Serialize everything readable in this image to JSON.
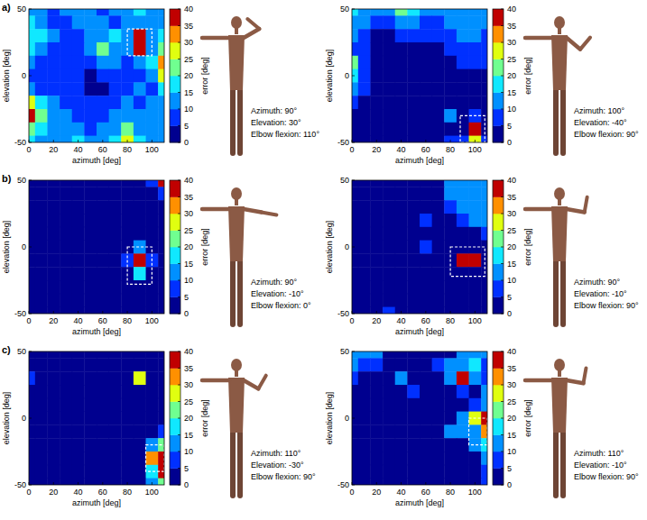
{
  "chart_data": [
    {
      "type": "heatmap",
      "panel": "a)",
      "xlabel": "azimuth [deg]",
      "ylabel": "elevation [deg]",
      "x": [
        0,
        10,
        20,
        30,
        40,
        50,
        60,
        70,
        80,
        90,
        100,
        110
      ],
      "y": [
        50,
        40,
        30,
        20,
        10,
        0,
        -10,
        -20,
        -30,
        -40,
        -50
      ],
      "xlim": [
        0,
        110
      ],
      "ylim": [
        -50,
        50
      ],
      "xticks": [
        0,
        20,
        40,
        60,
        80,
        100
      ],
      "yticks": [
        -50,
        0,
        50
      ],
      "values": [
        [
          12,
          10,
          8,
          10,
          12,
          10,
          8,
          10,
          12,
          15,
          12,
          10
        ],
        [
          15,
          12,
          8,
          8,
          10,
          12,
          10,
          8,
          10,
          12,
          10,
          12
        ],
        [
          18,
          15,
          10,
          8,
          8,
          10,
          12,
          15,
          12,
          40,
          12,
          15
        ],
        [
          15,
          12,
          8,
          5,
          8,
          10,
          22,
          12,
          10,
          35,
          10,
          20
        ],
        [
          10,
          8,
          5,
          5,
          8,
          5,
          10,
          10,
          8,
          12,
          15,
          30
        ],
        [
          8,
          5,
          5,
          8,
          5,
          3,
          5,
          8,
          5,
          8,
          10,
          25
        ],
        [
          12,
          8,
          5,
          8,
          5,
          3,
          3,
          5,
          8,
          10,
          8,
          15
        ],
        [
          25,
          15,
          10,
          8,
          5,
          5,
          5,
          8,
          10,
          8,
          10,
          12
        ],
        [
          40,
          20,
          12,
          10,
          8,
          5,
          8,
          10,
          12,
          10,
          12,
          10
        ],
        [
          20,
          15,
          10,
          12,
          10,
          8,
          10,
          12,
          20,
          12,
          10,
          12
        ],
        [
          15,
          12,
          10,
          12,
          15,
          12,
          12,
          15,
          25,
          15,
          12,
          10
        ]
      ],
      "colorbar": {
        "range": [
          0,
          40
        ],
        "ticks": [
          0,
          5,
          10,
          15,
          20,
          25,
          30,
          35,
          40
        ],
        "label": "error [deg]"
      },
      "highlight": {
        "x": [
          80,
          100
        ],
        "y": [
          15,
          35
        ]
      },
      "pose": {
        "azimuth": 90,
        "elevation": 30,
        "elbow_flexion": 110
      },
      "annotations": [
        "Azimuth: 90°",
        "Elevation: 30°",
        "Elbow flexion: 110°"
      ]
    },
    {
      "type": "heatmap",
      "xlabel": "azimuth [deg]",
      "ylabel": "elevation [deg]",
      "x": [
        0,
        10,
        20,
        30,
        40,
        50,
        60,
        70,
        80,
        90,
        100,
        110
      ],
      "y": [
        50,
        40,
        30,
        20,
        10,
        0,
        -10,
        -20,
        -30,
        -40,
        -50
      ],
      "xlim": [
        0,
        110
      ],
      "ylim": [
        -50,
        50
      ],
      "xticks": [
        0,
        20,
        40,
        60,
        80,
        100
      ],
      "yticks": [
        -50,
        0,
        50
      ],
      "values": [
        [
          15,
          12,
          10,
          12,
          20,
          15,
          12,
          10,
          12,
          12,
          12,
          12
        ],
        [
          12,
          10,
          5,
          5,
          10,
          10,
          8,
          8,
          10,
          12,
          10,
          10
        ],
        [
          10,
          5,
          3,
          3,
          5,
          5,
          5,
          5,
          8,
          10,
          10,
          8
        ],
        [
          8,
          5,
          3,
          3,
          3,
          3,
          3,
          3,
          5,
          8,
          8,
          8
        ],
        [
          20,
          8,
          3,
          3,
          3,
          3,
          3,
          3,
          3,
          5,
          5,
          5
        ],
        [
          15,
          5,
          3,
          2,
          2,
          2,
          2,
          3,
          3,
          3,
          3,
          3
        ],
        [
          10,
          5,
          3,
          2,
          2,
          2,
          2,
          2,
          3,
          3,
          3,
          3
        ],
        [
          5,
          3,
          2,
          2,
          2,
          2,
          2,
          2,
          3,
          3,
          3,
          3
        ],
        [
          3,
          3,
          2,
          2,
          2,
          2,
          2,
          3,
          12,
          3,
          5,
          3
        ],
        [
          3,
          2,
          2,
          2,
          2,
          2,
          3,
          3,
          3,
          3,
          40,
          3
        ],
        [
          3,
          3,
          3,
          3,
          3,
          3,
          3,
          3,
          5,
          5,
          25,
          5
        ]
      ],
      "colorbar": {
        "range": [
          0,
          40
        ],
        "ticks": [
          0,
          5,
          10,
          15,
          20,
          25,
          30,
          35,
          40
        ],
        "label": "error [deg]"
      },
      "highlight": {
        "x": [
          88,
          108
        ],
        "y": [
          -50,
          -30
        ]
      },
      "pose": {
        "azimuth": 100,
        "elevation": -40,
        "elbow_flexion": 90
      },
      "annotations": [
        "Azimuth: 100°",
        "Elevation: -40°",
        "Elbow flexion: 90°"
      ]
    },
    {
      "type": "heatmap",
      "panel": "b)",
      "xlabel": "azimuth [deg]",
      "ylabel": "elevation [deg]",
      "x": [
        0,
        10,
        20,
        30,
        40,
        50,
        60,
        70,
        80,
        90,
        100,
        110
      ],
      "y": [
        50,
        40,
        30,
        20,
        10,
        0,
        -10,
        -20,
        -30,
        -40,
        -50
      ],
      "xlim": [
        0,
        110
      ],
      "ylim": [
        -50,
        50
      ],
      "xticks": [
        0,
        20,
        40,
        60,
        80,
        100
      ],
      "yticks": [
        -50,
        0,
        50
      ],
      "values": [
        [
          2,
          2,
          2,
          2,
          2,
          2,
          2,
          2,
          2,
          2,
          5,
          40
        ],
        [
          2,
          2,
          2,
          2,
          2,
          2,
          2,
          2,
          2,
          2,
          2,
          5
        ],
        [
          2,
          2,
          2,
          2,
          2,
          2,
          2,
          2,
          2,
          2,
          2,
          2
        ],
        [
          2,
          2,
          2,
          2,
          2,
          2,
          2,
          2,
          2,
          2,
          2,
          2
        ],
        [
          2,
          2,
          2,
          2,
          2,
          2,
          2,
          2,
          2,
          2,
          2,
          2
        ],
        [
          2,
          2,
          2,
          2,
          2,
          2,
          2,
          2,
          2,
          12,
          2,
          2
        ],
        [
          2,
          2,
          2,
          2,
          2,
          2,
          2,
          2,
          8,
          40,
          5,
          2
        ],
        [
          2,
          2,
          2,
          2,
          2,
          2,
          2,
          2,
          2,
          15,
          2,
          2
        ],
        [
          2,
          2,
          2,
          2,
          2,
          2,
          2,
          2,
          2,
          2,
          2,
          2
        ],
        [
          2,
          2,
          2,
          2,
          2,
          2,
          2,
          2,
          2,
          2,
          2,
          2
        ],
        [
          2,
          2,
          2,
          2,
          2,
          2,
          2,
          2,
          2,
          2,
          2,
          2
        ]
      ],
      "colorbar": {
        "range": [
          0,
          40
        ],
        "ticks": [
          0,
          5,
          10,
          15,
          20,
          25,
          30,
          35,
          40
        ],
        "label": "error [deg]"
      },
      "highlight": {
        "x": [
          80,
          100
        ],
        "y": [
          -28,
          0
        ]
      },
      "pose": {
        "azimuth": 90,
        "elevation": -10,
        "elbow_flexion": 0
      },
      "annotations": [
        "Azimuth: 90°",
        "Elevation: -10°",
        "Elbow flexion: 0°"
      ]
    },
    {
      "type": "heatmap",
      "xlabel": "azimuth [deg]",
      "ylabel": "elevation [deg]",
      "x": [
        0,
        10,
        20,
        30,
        40,
        50,
        60,
        70,
        80,
        90,
        100,
        110
      ],
      "y": [
        50,
        40,
        30,
        20,
        10,
        0,
        -10,
        -20,
        -30,
        -40,
        -50
      ],
      "xlim": [
        0,
        110
      ],
      "ylim": [
        -50,
        50
      ],
      "xticks": [
        0,
        20,
        40,
        60,
        80,
        100
      ],
      "yticks": [
        -50,
        0,
        50
      ],
      "values": [
        [
          2,
          2,
          2,
          2,
          2,
          2,
          2,
          2,
          12,
          12,
          12,
          12
        ],
        [
          2,
          2,
          2,
          2,
          2,
          2,
          2,
          2,
          10,
          12,
          12,
          12
        ],
        [
          2,
          2,
          2,
          2,
          2,
          2,
          2,
          2,
          5,
          10,
          12,
          12
        ],
        [
          2,
          2,
          2,
          2,
          2,
          2,
          8,
          2,
          2,
          8,
          10,
          10
        ],
        [
          2,
          2,
          2,
          2,
          2,
          2,
          2,
          2,
          2,
          2,
          3,
          5
        ],
        [
          2,
          2,
          2,
          2,
          2,
          2,
          8,
          2,
          2,
          2,
          2,
          2
        ],
        [
          2,
          2,
          2,
          2,
          2,
          2,
          2,
          2,
          2,
          40,
          40,
          3
        ],
        [
          2,
          2,
          2,
          2,
          2,
          2,
          2,
          2,
          2,
          2,
          2,
          2
        ],
        [
          2,
          2,
          2,
          2,
          2,
          2,
          2,
          2,
          2,
          2,
          2,
          2
        ],
        [
          2,
          2,
          2,
          2,
          2,
          2,
          2,
          2,
          2,
          2,
          2,
          2
        ],
        [
          2,
          2,
          2,
          8,
          2,
          2,
          2,
          2,
          2,
          2,
          2,
          2
        ]
      ],
      "colorbar": {
        "range": [
          0,
          40
        ],
        "ticks": [
          0,
          5,
          10,
          15,
          20,
          25,
          30,
          35,
          40
        ],
        "label": "error [deg]"
      },
      "highlight": {
        "x": [
          80,
          108
        ],
        "y": [
          -22,
          0
        ]
      },
      "pose": {
        "azimuth": 90,
        "elevation": -10,
        "elbow_flexion": 90
      },
      "annotations": [
        "Azimuth: 90°",
        "Elevation: -10°",
        "Elbow flexion: 90°"
      ]
    },
    {
      "type": "heatmap",
      "panel": "c)",
      "xlabel": "azimuth [deg]",
      "ylabel": "elevation [deg]",
      "x": [
        0,
        10,
        20,
        30,
        40,
        50,
        60,
        70,
        80,
        90,
        100,
        110
      ],
      "y": [
        50,
        40,
        30,
        20,
        10,
        0,
        -10,
        -20,
        -30,
        -40,
        -50
      ],
      "xlim": [
        0,
        110
      ],
      "ylim": [
        -50,
        50
      ],
      "xticks": [
        0,
        20,
        40,
        60,
        80,
        100
      ],
      "yticks": [
        -50,
        0,
        50
      ],
      "values": [
        [
          2,
          2,
          2,
          2,
          2,
          2,
          2,
          2,
          2,
          2,
          2,
          2
        ],
        [
          2,
          2,
          2,
          2,
          2,
          2,
          2,
          2,
          2,
          2,
          2,
          2
        ],
        [
          8,
          2,
          2,
          2,
          2,
          2,
          2,
          2,
          2,
          25,
          2,
          2
        ],
        [
          2,
          2,
          2,
          2,
          2,
          2,
          2,
          2,
          2,
          2,
          2,
          2
        ],
        [
          2,
          2,
          2,
          2,
          2,
          2,
          2,
          2,
          2,
          2,
          2,
          2
        ],
        [
          2,
          2,
          2,
          2,
          2,
          2,
          2,
          2,
          2,
          2,
          2,
          2
        ],
        [
          2,
          2,
          2,
          2,
          2,
          2,
          2,
          2,
          2,
          2,
          2,
          8
        ],
        [
          2,
          2,
          2,
          2,
          2,
          2,
          2,
          2,
          2,
          2,
          10,
          20
        ],
        [
          2,
          2,
          2,
          2,
          2,
          2,
          2,
          2,
          2,
          2,
          30,
          40
        ],
        [
          2,
          2,
          2,
          2,
          2,
          2,
          2,
          2,
          2,
          2,
          15,
          35
        ],
        [
          2,
          2,
          2,
          2,
          2,
          2,
          2,
          2,
          2,
          2,
          10,
          20
        ]
      ],
      "colorbar": {
        "range": [
          0,
          40
        ],
        "ticks": [
          0,
          5,
          10,
          15,
          20,
          25,
          30,
          35,
          40
        ],
        "label": "error [deg]"
      },
      "highlight": {
        "x": [
          95,
          110
        ],
        "y": [
          -40,
          -20
        ]
      },
      "pose": {
        "azimuth": 110,
        "elevation": -30,
        "elbow_flexion": 90
      },
      "annotations": [
        "Azimuth: 110°",
        "Elevation: -30°",
        "Elbow flexion: 90°"
      ]
    },
    {
      "type": "heatmap",
      "xlabel": "azimuth [deg]",
      "ylabel": "elevation [deg]",
      "x": [
        0,
        10,
        20,
        30,
        40,
        50,
        60,
        70,
        80,
        90,
        100,
        110
      ],
      "y": [
        50,
        40,
        30,
        20,
        10,
        0,
        -10,
        -20,
        -30,
        -40,
        -50
      ],
      "xlim": [
        0,
        110
      ],
      "ylim": [
        -50,
        50
      ],
      "xticks": [
        0,
        20,
        40,
        60,
        80,
        100
      ],
      "yticks": [
        -50,
        0,
        50
      ],
      "values": [
        [
          12,
          10,
          12,
          2,
          2,
          2,
          2,
          2,
          2,
          10,
          12,
          12
        ],
        [
          10,
          8,
          5,
          2,
          2,
          2,
          2,
          8,
          10,
          12,
          15,
          8
        ],
        [
          5,
          2,
          2,
          2,
          10,
          2,
          2,
          2,
          10,
          40,
          10,
          5
        ],
        [
          2,
          2,
          2,
          2,
          2,
          8,
          2,
          2,
          2,
          8,
          2,
          12
        ],
        [
          2,
          2,
          2,
          2,
          2,
          2,
          2,
          2,
          2,
          2,
          8,
          12
        ],
        [
          2,
          2,
          2,
          2,
          2,
          2,
          2,
          2,
          2,
          10,
          25,
          40
        ],
        [
          2,
          2,
          2,
          2,
          2,
          2,
          2,
          2,
          12,
          10,
          12,
          30
        ],
        [
          2,
          2,
          2,
          2,
          2,
          2,
          2,
          2,
          2,
          2,
          10,
          15
        ],
        [
          2,
          2,
          2,
          2,
          2,
          2,
          2,
          2,
          2,
          2,
          2,
          10
        ],
        [
          2,
          2,
          2,
          2,
          2,
          2,
          2,
          2,
          2,
          2,
          2,
          8
        ],
        [
          2,
          2,
          2,
          2,
          2,
          2,
          2,
          2,
          2,
          2,
          2,
          5
        ]
      ],
      "colorbar": {
        "range": [
          0,
          40
        ],
        "ticks": [
          0,
          5,
          10,
          15,
          20,
          25,
          30,
          35,
          40
        ],
        "label": "error [deg]"
      },
      "highlight": {
        "x": [
          95,
          110
        ],
        "y": [
          -20,
          0
        ]
      },
      "pose": {
        "azimuth": 110,
        "elevation": -10,
        "elbow_flexion": 90
      },
      "annotations": [
        "Azimuth: 110°",
        "Elevation: -10°",
        "Elbow flexion: 90°"
      ]
    }
  ]
}
